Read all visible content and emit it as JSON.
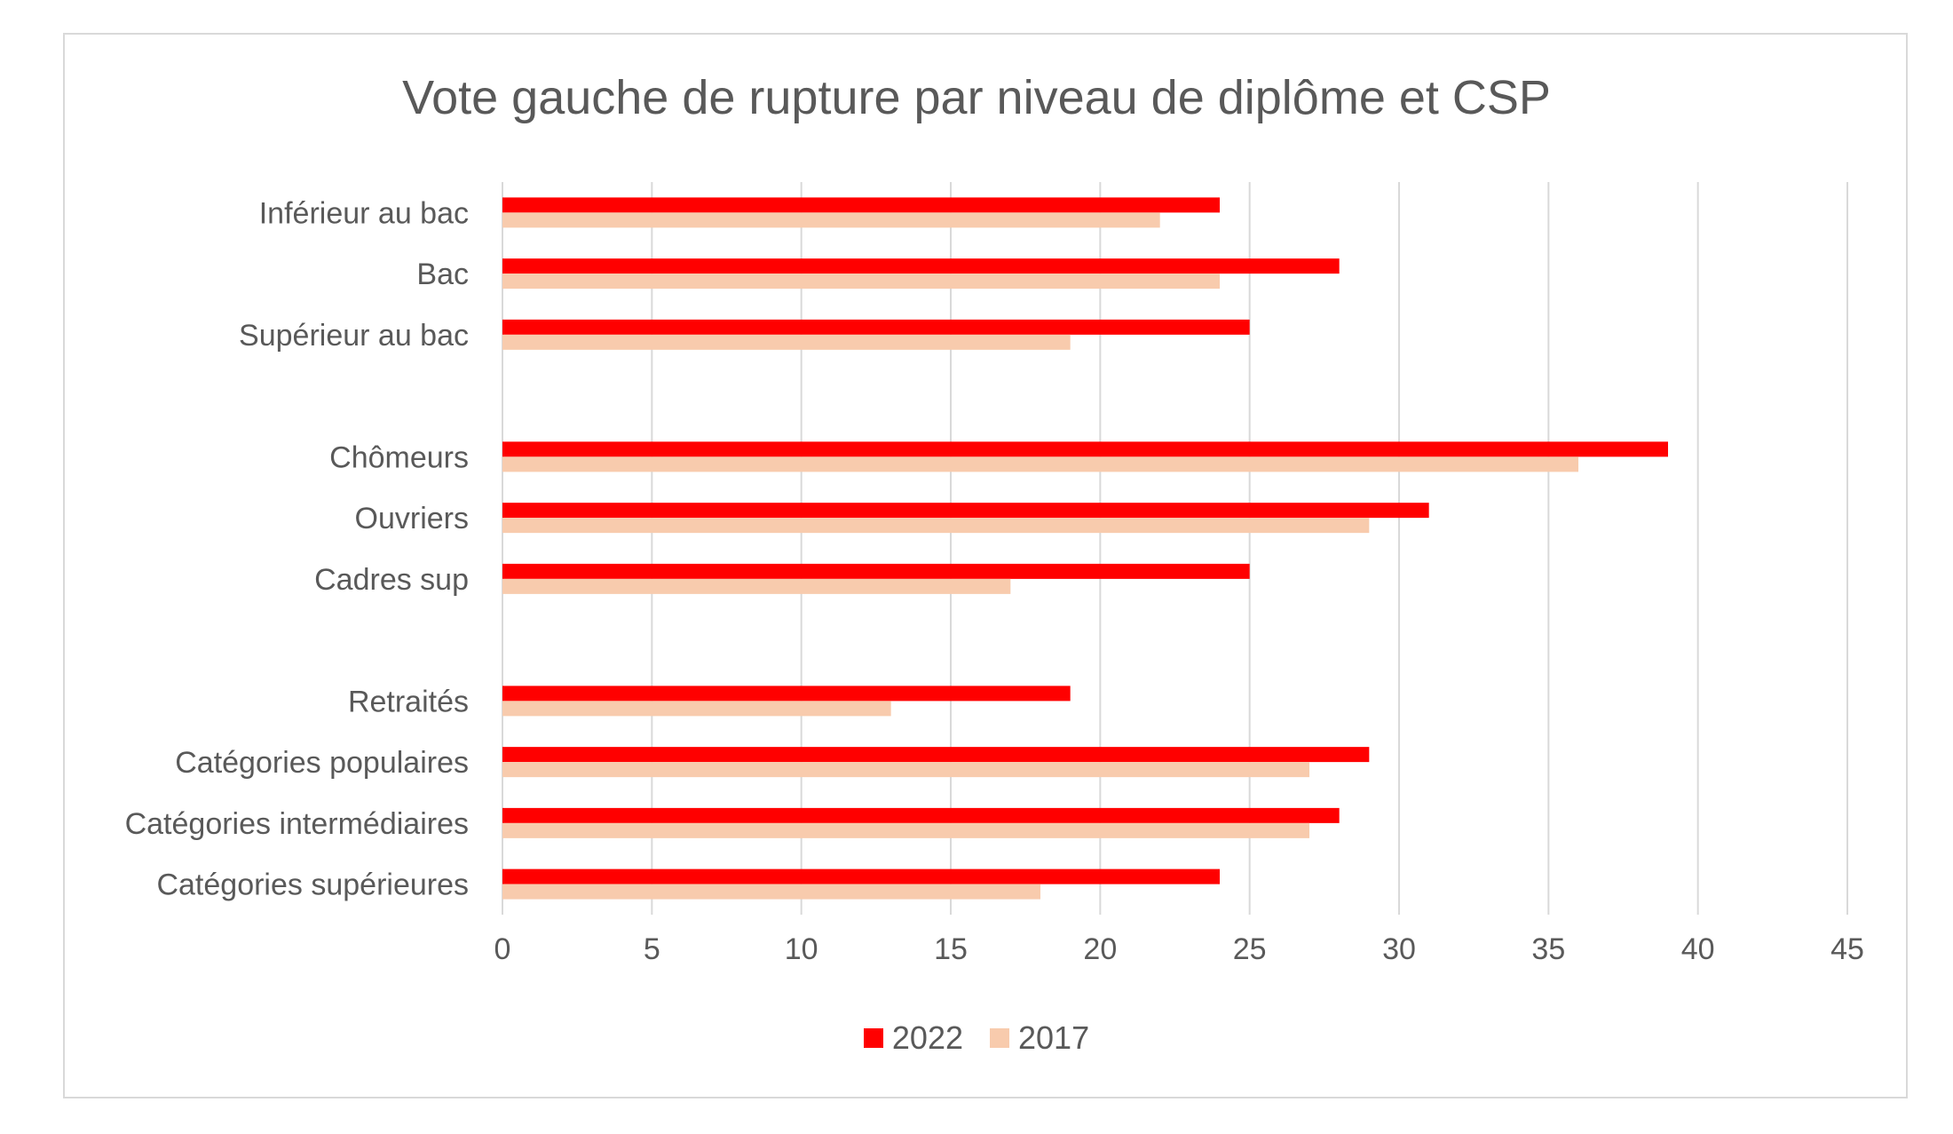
{
  "chart_data": {
    "type": "bar",
    "orientation": "horizontal",
    "title": "Vote gauche de rupture par niveau de diplôme et CSP",
    "categories": [
      "Inférieur au bac",
      "Bac",
      "Supérieur au bac",
      "",
      "Chômeurs",
      "Ouvriers",
      "Cadres sup",
      "",
      "Retraités",
      "Catégories populaires",
      "Catégories intermédiaires",
      "Catégories supérieures"
    ],
    "series": [
      {
        "name": "2022",
        "color": "#ff0000",
        "values": [
          24,
          28,
          25,
          null,
          39,
          31,
          25,
          null,
          19,
          29,
          28,
          24
        ]
      },
      {
        "name": "2017",
        "color": "#f8cbad",
        "values": [
          22,
          24,
          19,
          null,
          36,
          29,
          17,
          null,
          13,
          27,
          27,
          18
        ]
      }
    ],
    "xlim": [
      0,
      45
    ],
    "xticks": [
      0,
      5,
      10,
      15,
      20,
      25,
      30,
      35,
      40,
      45
    ],
    "grid": true,
    "legend_position": "bottom",
    "xlabel": "",
    "ylabel": ""
  },
  "colors": {
    "gridline": "#d9d9d9",
    "text": "#595959"
  }
}
